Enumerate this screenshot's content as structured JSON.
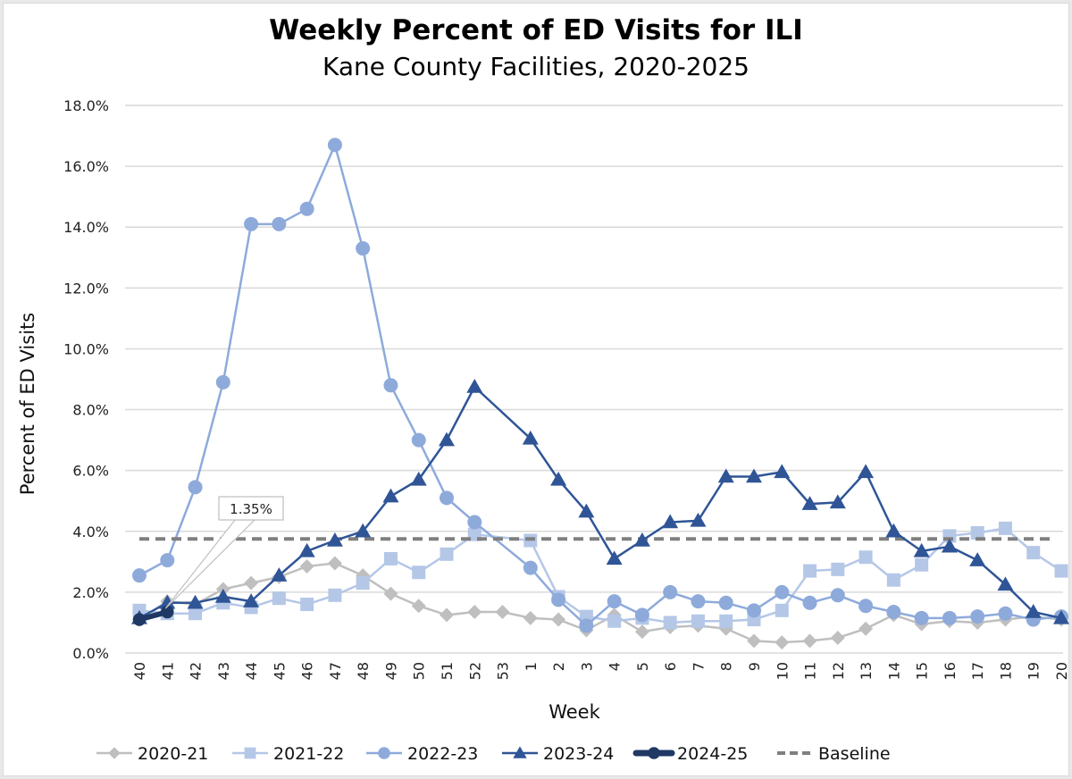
{
  "chart_data": {
    "type": "line",
    "title": "Weekly Percent of ED Visits for ILI",
    "subtitle": "Kane County Facilities, 2020-2025",
    "xlabel": "Week",
    "ylabel": "Percent of ED Visits",
    "ylim": [
      0,
      18
    ],
    "y_ticks": [
      "0.0%",
      "2.0%",
      "4.0%",
      "6.0%",
      "8.0%",
      "10.0%",
      "12.0%",
      "14.0%",
      "16.0%",
      "18.0%"
    ],
    "grid": "horizontal",
    "legend_position": "bottom",
    "categories": [
      "40",
      "41",
      "42",
      "43",
      "44",
      "45",
      "46",
      "47",
      "48",
      "49",
      "50",
      "51",
      "52",
      "53",
      "1",
      "2",
      "3",
      "4",
      "5",
      "6",
      "7",
      "8",
      "9",
      "10",
      "11",
      "12",
      "13",
      "14",
      "15",
      "16",
      "17",
      "18",
      "19",
      "20"
    ],
    "series": [
      {
        "name": "2020-21",
        "marker": "diamond",
        "color": "#bfbfbf",
        "values": [
          1.1,
          1.7,
          1.6,
          2.1,
          2.3,
          2.5,
          2.85,
          2.95,
          2.55,
          1.95,
          1.55,
          1.25,
          1.35,
          1.35,
          1.15,
          1.1,
          0.75,
          1.25,
          0.7,
          0.85,
          0.9,
          0.8,
          0.4,
          0.35,
          0.4,
          0.5,
          0.8,
          1.25,
          0.95,
          1.05,
          1.0,
          1.1,
          1.2,
          1.1
        ]
      },
      {
        "name": "2021-22",
        "marker": "square",
        "color": "#b4c7e7",
        "values": [
          1.4,
          1.3,
          1.3,
          1.65,
          1.5,
          1.8,
          1.6,
          1.9,
          2.3,
          3.1,
          2.65,
          3.25,
          3.9,
          null,
          3.7,
          1.85,
          1.2,
          1.05,
          1.15,
          1.0,
          1.05,
          1.05,
          1.1,
          1.4,
          2.7,
          2.75,
          3.15,
          2.4,
          2.9,
          3.85,
          3.95,
          4.1,
          3.3,
          2.7
        ]
      },
      {
        "name": "2022-23",
        "marker": "circle",
        "color": "#8eaadb",
        "values": [
          2.55,
          3.05,
          5.45,
          8.9,
          14.1,
          14.1,
          14.6,
          16.7,
          13.3,
          8.8,
          7.0,
          5.1,
          4.3,
          null,
          2.8,
          1.75,
          0.9,
          1.7,
          1.25,
          2.0,
          1.7,
          1.65,
          1.4,
          2.0,
          1.65,
          1.9,
          1.55,
          1.35,
          1.15,
          1.15,
          1.2,
          1.3,
          1.1,
          1.2
        ]
      },
      {
        "name": "2023-24",
        "marker": "triangle",
        "color": "#2f5597",
        "values": [
          1.15,
          1.65,
          1.65,
          1.85,
          1.7,
          2.55,
          3.35,
          3.7,
          4.0,
          5.15,
          5.7,
          7.0,
          8.75,
          null,
          7.05,
          5.7,
          4.65,
          3.1,
          3.7,
          4.3,
          4.35,
          5.8,
          5.8,
          5.95,
          4.9,
          4.95,
          5.95,
          4.0,
          3.35,
          3.5,
          3.05,
          2.25,
          1.35,
          1.15
        ]
      },
      {
        "name": "2024-25",
        "marker": "circle",
        "color": "#1f3864",
        "values": [
          1.1,
          1.35
        ]
      },
      {
        "name": "Baseline",
        "marker": "none",
        "style": "dashed",
        "color": "#7f7f7f",
        "values": [
          3.75,
          3.75,
          3.75,
          3.75,
          3.75,
          3.75,
          3.75,
          3.75,
          3.75,
          3.75,
          3.75,
          3.75,
          3.75,
          3.75,
          3.75,
          3.75,
          3.75,
          3.75,
          3.75,
          3.75,
          3.75,
          3.75,
          3.75,
          3.75,
          3.75,
          3.75,
          3.75,
          3.75,
          3.75,
          3.75,
          3.75,
          3.75,
          3.75,
          3.75
        ]
      }
    ],
    "annotations": [
      {
        "text": "1.35%",
        "series": "2024-25",
        "category": "41",
        "value": 1.35
      }
    ]
  }
}
